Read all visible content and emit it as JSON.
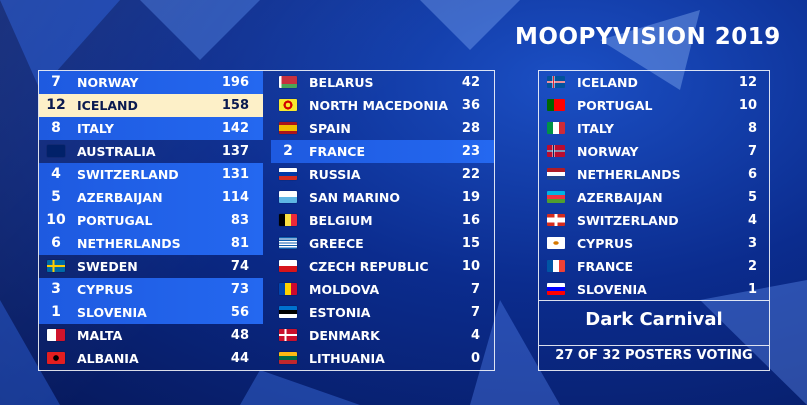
{
  "header": {
    "title": "MOOPYVISION 2019"
  },
  "colors": {
    "received": "#2468f0",
    "highlight": "#fdf0c8"
  },
  "scoreboard": {
    "left": [
      {
        "pts": "7",
        "country": "NORWAY",
        "score": "196",
        "state": "received",
        "flag": "norway-flag"
      },
      {
        "pts": "12",
        "country": "ICELAND",
        "score": "158",
        "state": "highlight",
        "flag": "iceland-flag"
      },
      {
        "pts": "8",
        "country": "ITALY",
        "score": "142",
        "state": "received",
        "flag": "italy-flag"
      },
      {
        "pts": "",
        "country": "AUSTRALIA",
        "score": "137",
        "state": "none",
        "flag": "australia-flag"
      },
      {
        "pts": "4",
        "country": "SWITZERLAND",
        "score": "131",
        "state": "received",
        "flag": "switzerland-flag"
      },
      {
        "pts": "5",
        "country": "AZERBAIJAN",
        "score": "114",
        "state": "received",
        "flag": "azerbaijan-flag"
      },
      {
        "pts": "10",
        "country": "PORTUGAL",
        "score": "83",
        "state": "received",
        "flag": "portugal-flag"
      },
      {
        "pts": "6",
        "country": "NETHERLANDS",
        "score": "81",
        "state": "received",
        "flag": "netherlands-flag"
      },
      {
        "pts": "",
        "country": "SWEDEN",
        "score": "74",
        "state": "none",
        "flag": "sweden-flag"
      },
      {
        "pts": "3",
        "country": "CYPRUS",
        "score": "73",
        "state": "received",
        "flag": "cyprus-flag"
      },
      {
        "pts": "1",
        "country": "SLOVENIA",
        "score": "56",
        "state": "received",
        "flag": "slovenia-flag"
      },
      {
        "pts": "",
        "country": "MALTA",
        "score": "48",
        "state": "none",
        "flag": "malta-flag"
      },
      {
        "pts": "",
        "country": "ALBANIA",
        "score": "44",
        "state": "none",
        "flag": "albania-flag"
      }
    ],
    "right": [
      {
        "pts": "",
        "country": "BELARUS",
        "score": "42",
        "state": "none",
        "flag": "belarus-flag"
      },
      {
        "pts": "",
        "country": "NORTH MACEDONIA",
        "score": "36",
        "state": "none",
        "flag": "north-macedonia-flag"
      },
      {
        "pts": "",
        "country": "SPAIN",
        "score": "28",
        "state": "none",
        "flag": "spain-flag"
      },
      {
        "pts": "2",
        "country": "FRANCE",
        "score": "23",
        "state": "received",
        "flag": "france-flag"
      },
      {
        "pts": "",
        "country": "RUSSIA",
        "score": "22",
        "state": "none",
        "flag": "russia-flag"
      },
      {
        "pts": "",
        "country": "SAN MARINO",
        "score": "19",
        "state": "none",
        "flag": "san-marino-flag"
      },
      {
        "pts": "",
        "country": "BELGIUM",
        "score": "16",
        "state": "none",
        "flag": "belgium-flag"
      },
      {
        "pts": "",
        "country": "GREECE",
        "score": "15",
        "state": "none",
        "flag": "greece-flag"
      },
      {
        "pts": "",
        "country": "CZECH REPUBLIC",
        "score": "10",
        "state": "none",
        "flag": "czech-republic-flag"
      },
      {
        "pts": "",
        "country": "MOLDOVA",
        "score": "7",
        "state": "none",
        "flag": "moldova-flag"
      },
      {
        "pts": "",
        "country": "ESTONIA",
        "score": "7",
        "state": "none",
        "flag": "estonia-flag"
      },
      {
        "pts": "",
        "country": "DENMARK",
        "score": "4",
        "state": "none",
        "flag": "denmark-flag"
      },
      {
        "pts": "",
        "country": "LITHUANIA",
        "score": "0",
        "state": "none",
        "flag": "lithuania-flag"
      }
    ]
  },
  "voting": {
    "given": [
      {
        "country": "ICELAND",
        "points": "12",
        "flag": "iceland-flag"
      },
      {
        "country": "PORTUGAL",
        "points": "10",
        "flag": "portugal-flag"
      },
      {
        "country": "ITALY",
        "points": "8",
        "flag": "italy-flag"
      },
      {
        "country": "NORWAY",
        "points": "7",
        "flag": "norway-flag"
      },
      {
        "country": "NETHERLANDS",
        "points": "6",
        "flag": "netherlands-flag"
      },
      {
        "country": "AZERBAIJAN",
        "points": "5",
        "flag": "azerbaijan-flag"
      },
      {
        "country": "SWITZERLAND",
        "points": "4",
        "flag": "switzerland-flag"
      },
      {
        "country": "CYPRUS",
        "points": "3",
        "flag": "cyprus-flag"
      },
      {
        "country": "FRANCE",
        "points": "2",
        "flag": "france-flag"
      },
      {
        "country": "SLOVENIA",
        "points": "1",
        "flag": "slovenia-flag"
      }
    ],
    "voter": "Dark Carnival",
    "status": "27 OF 32 POSTERS VOTING"
  }
}
